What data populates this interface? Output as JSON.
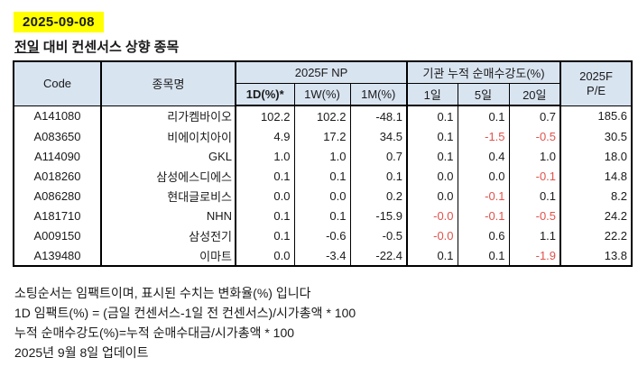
{
  "page": {
    "date_badge": "2025-09-08",
    "title_underlined": "전일",
    "title_rest": " 대비 컨센서스 상향 종목"
  },
  "table": {
    "headers": {
      "code": "Code",
      "name": "종목명",
      "np_group": "2025F NP",
      "inst_group": "기관 누적 순매수강도(%)",
      "pe_line1": "2025F",
      "pe_line2": "P/E",
      "sub": [
        "1D(%)*",
        "1W(%)",
        "1M(%)",
        "1일",
        "5일",
        "20일"
      ]
    },
    "rows": [
      {
        "code": "A141080",
        "name": "리가켐바이오",
        "values": [
          "102.2",
          "102.2",
          "-48.1",
          "0.1",
          "0.1",
          "0.7"
        ],
        "red": [
          false,
          false,
          false,
          false,
          false,
          false
        ],
        "pe": "185.6"
      },
      {
        "code": "A083650",
        "name": "비에이치아이",
        "values": [
          "4.9",
          "17.2",
          "34.5",
          "0.1",
          "-1.5",
          "-0.5"
        ],
        "red": [
          false,
          false,
          false,
          false,
          true,
          true
        ],
        "pe": "30.5"
      },
      {
        "code": "A114090",
        "name": "GKL",
        "values": [
          "1.0",
          "1.0",
          "0.7",
          "0.1",
          "0.4",
          "1.0"
        ],
        "red": [
          false,
          false,
          false,
          false,
          false,
          false
        ],
        "pe": "18.0"
      },
      {
        "code": "A018260",
        "name": "삼성에스디에스",
        "values": [
          "0.1",
          "0.1",
          "0.1",
          "0.0",
          "0.0",
          "-0.1"
        ],
        "red": [
          false,
          false,
          false,
          false,
          false,
          true
        ],
        "pe": "14.8"
      },
      {
        "code": "A086280",
        "name": "현대글로비스",
        "values": [
          "0.0",
          "0.0",
          "0.2",
          "0.0",
          "-0.1",
          "0.1"
        ],
        "red": [
          false,
          false,
          false,
          false,
          true,
          false
        ],
        "pe": "8.2"
      },
      {
        "code": "A181710",
        "name": "NHN",
        "values": [
          "0.1",
          "0.1",
          "-15.9",
          "-0.0",
          "-0.1",
          "-0.5"
        ],
        "red": [
          false,
          false,
          false,
          true,
          true,
          true
        ],
        "pe": "24.2"
      },
      {
        "code": "A009150",
        "name": "삼성전기",
        "values": [
          "0.1",
          "-0.6",
          "-0.5",
          "-0.0",
          "0.6",
          "1.1"
        ],
        "red": [
          false,
          false,
          false,
          true,
          false,
          false
        ],
        "pe": "22.2"
      },
      {
        "code": "A139480",
        "name": "이마트",
        "values": [
          "0.0",
          "-3.4",
          "-22.4",
          "0.1",
          "0.1",
          "-1.9"
        ],
        "red": [
          false,
          false,
          false,
          false,
          false,
          true
        ],
        "pe": "13.8"
      }
    ]
  },
  "footer": {
    "lines": [
      "소팅순서는 임팩트이며, 표시된 수치는 변화율(%) 입니다",
      "1D 임팩트(%) = (금일 컨센서스-1일 전 컨센서스)/시가총액 * 100",
      "누적 순매수강도(%)=누적 순매수대금/시가총액 * 100",
      "2025년 9월 8일 업데이트"
    ]
  },
  "colors": {
    "header_bg": "#d9e4f1",
    "highlight_yellow": "#ffff00",
    "negative_red": "#e0524d",
    "border": "#000000",
    "text": "#1a1a1a"
  }
}
